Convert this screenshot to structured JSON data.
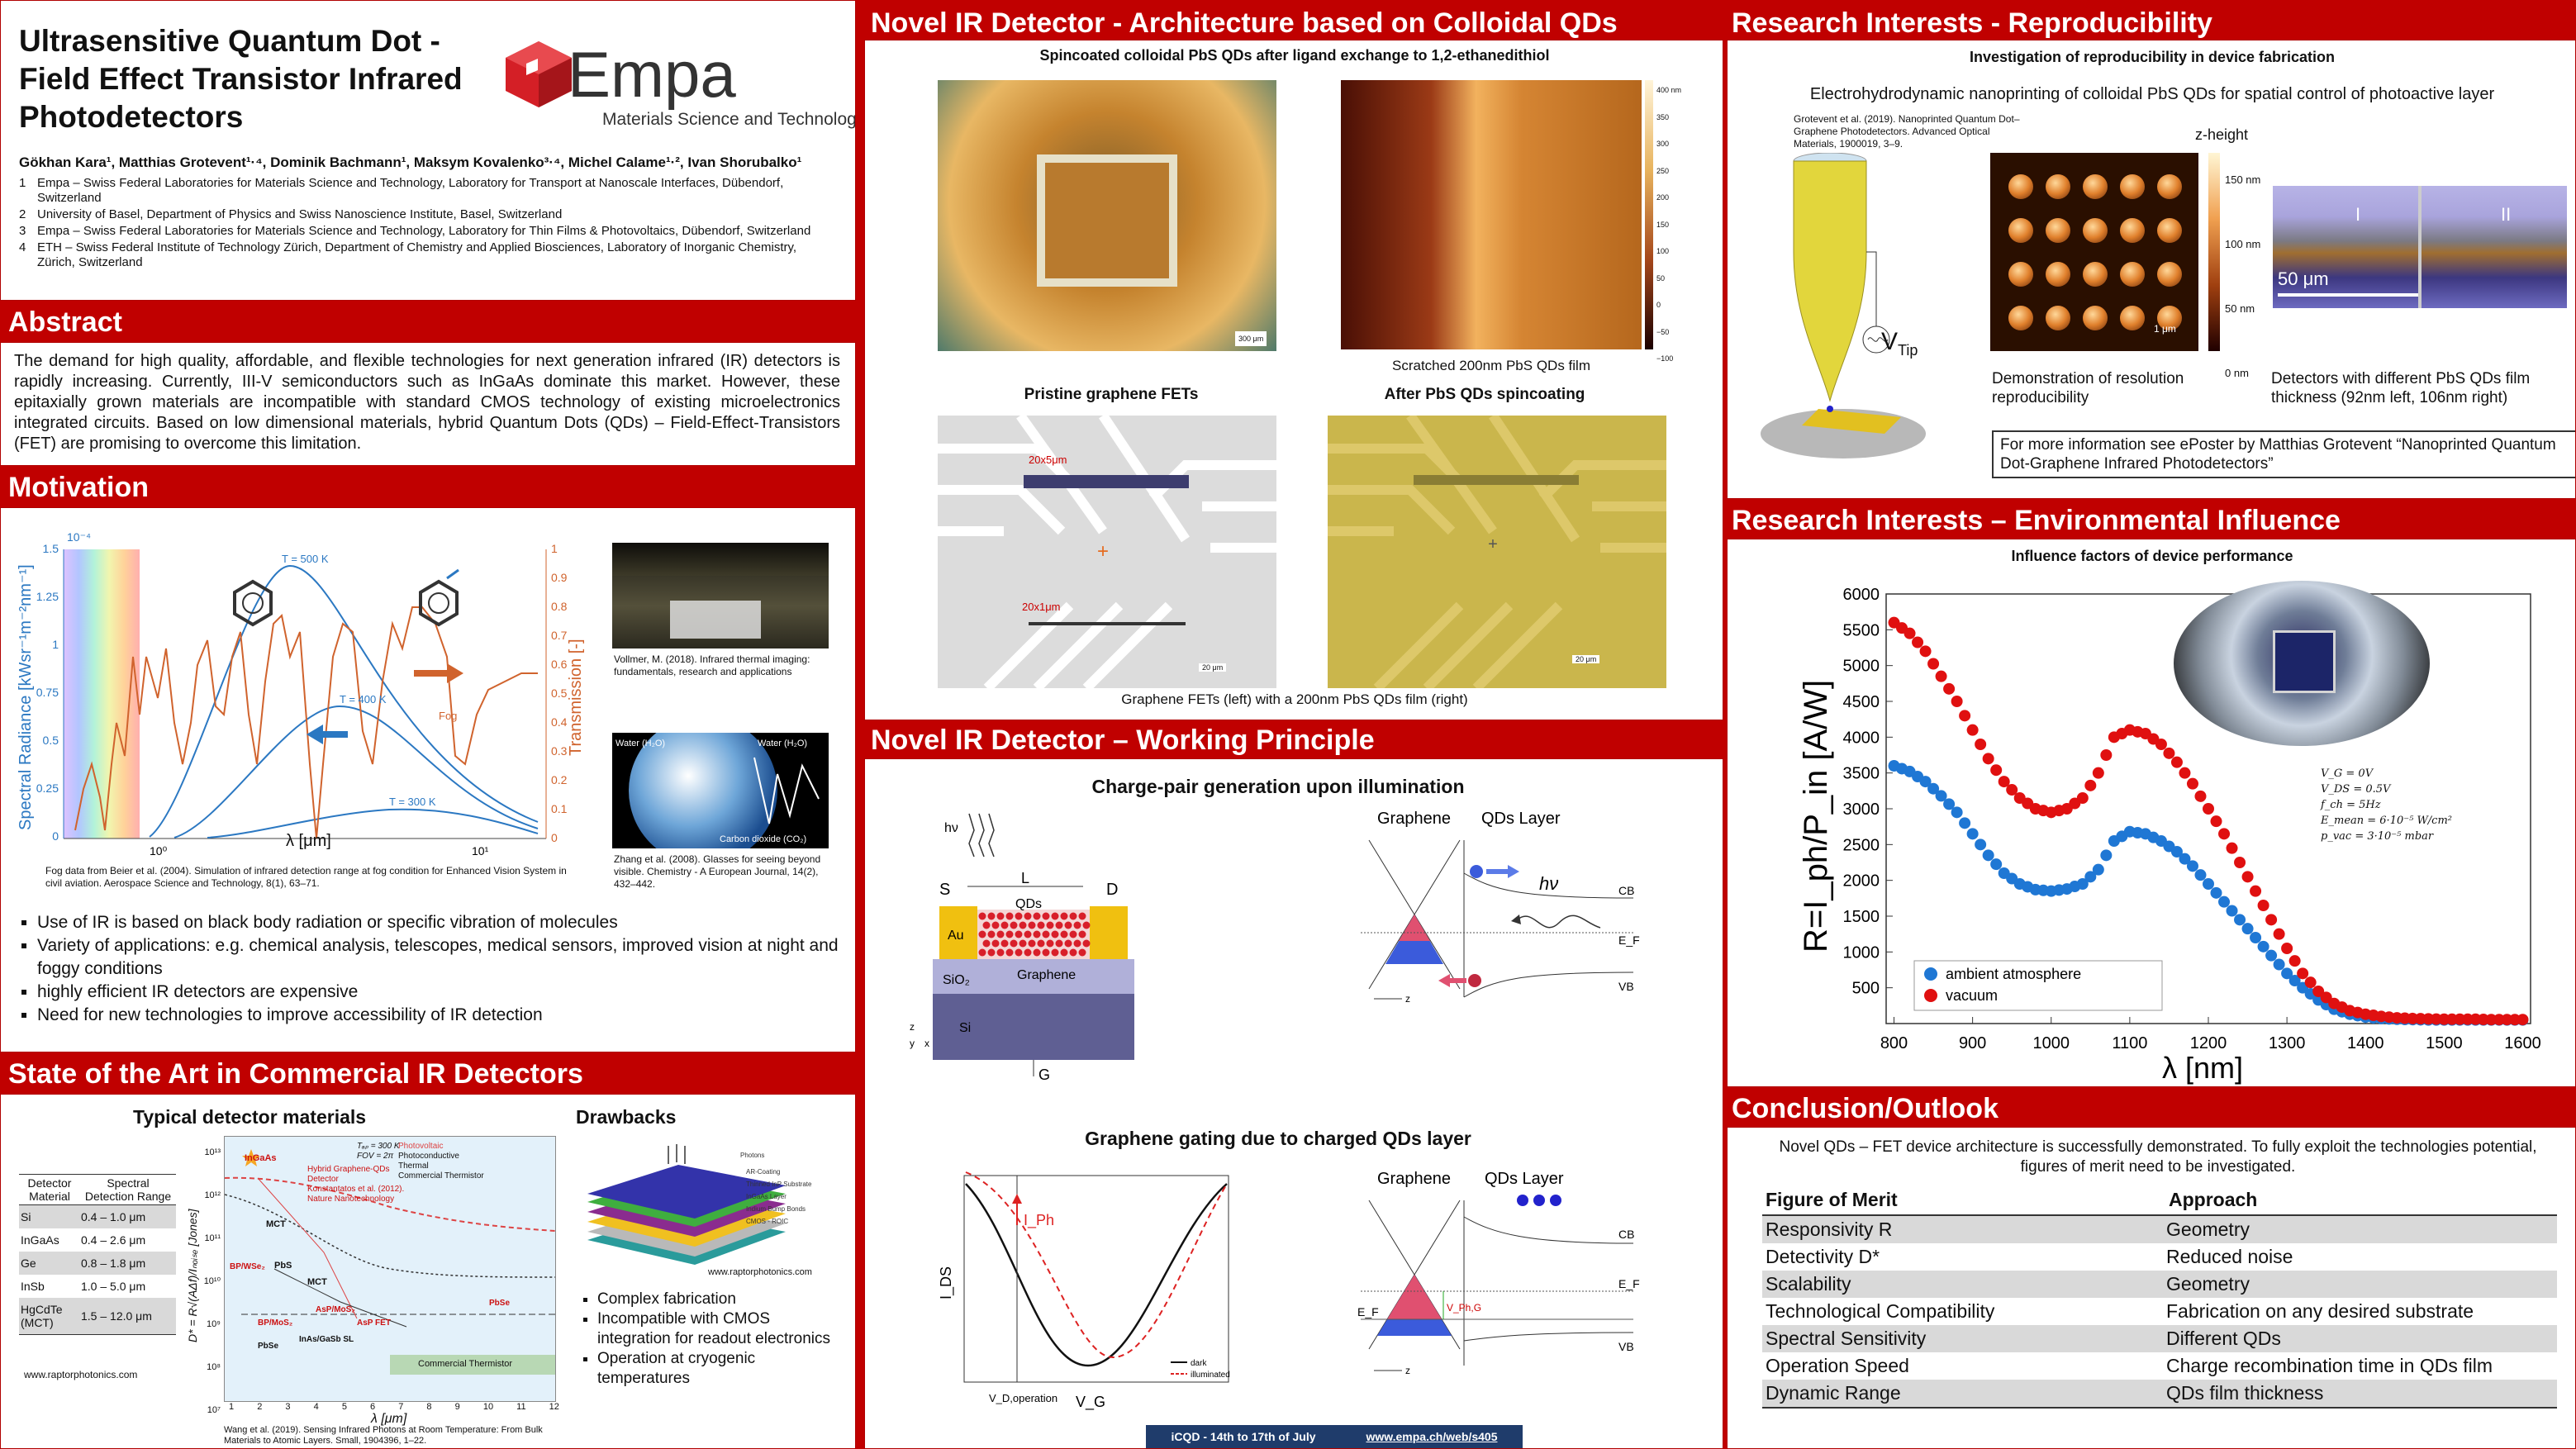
{
  "title": {
    "main": [
      "Ultrasensitive Quantum Dot -",
      "Field Effect Transistor Infrared",
      "Photodetectors"
    ],
    "logo_text": "Empa",
    "logo_sub": "Materials Science and Technology",
    "authors": "Gökhan Kara¹, Matthias Grotevent¹·⁴, Dominik Bachmann¹, Maksym Kovalenko³·⁴, Michel Calame¹·², Ivan Shorubalko¹",
    "affiliations": [
      {
        "n": "1",
        "text": "Empa – Swiss Federal Laboratories for Materials Science and Technology, Laboratory for Transport at Nanoscale Interfaces, Dübendorf, Switzerland"
      },
      {
        "n": "2",
        "text": "University of Basel, Department of Physics and Swiss Nanoscience Institute, Basel, Switzerland"
      },
      {
        "n": "3",
        "text": "Empa – Swiss Federal Laboratories for Materials Science and Technology, Laboratory for Thin Films & Photovoltaics, Dübendorf, Switzerland"
      },
      {
        "n": "4",
        "text": "ETH – Swiss Federal Institute of Technology Zürich, Department of Chemistry and Applied Biosciences, Laboratory of Inorganic Chemistry, Zürich, Switzerland"
      }
    ]
  },
  "abstract": {
    "heading": "Abstract",
    "text": "The demand for high quality, affordable, and flexible technologies for next generation infrared (IR) detectors is rapidly increasing. Currently, III-V semiconductors such as InGaAs dominate this market. However, these epitaxially grown materials are incompatible with standard CMOS technology of existing microelectronics integrated circuits. Based on low dimensional materials, hybrid Quantum Dots (QDs) – Field-Effect-Transistors (FET) are promising to overcome this limitation."
  },
  "motivation": {
    "heading": "Motivation",
    "ylabel_left": "Spectral Radiance [kWsr⁻¹m⁻²nm⁻¹]",
    "ylabel_right": "Transmission [-]",
    "xlabel": "λ [μm]",
    "exp_label": "10⁻⁴",
    "y_ticks": [
      "1.5",
      "1.25",
      "1",
      "0.75",
      "0.5",
      "0.25",
      "0"
    ],
    "y2_ticks": [
      "1",
      "0.9",
      "0.8",
      "0.7",
      "0.6",
      "0.5",
      "0.4",
      "0.3",
      "0.2",
      "0.1",
      "0"
    ],
    "x_ticks": [
      "10⁰",
      "10¹"
    ],
    "curve_labels": [
      "T = 500 K",
      "T = 400 K",
      "T = 300 K",
      "Fog"
    ],
    "fog_caption": "Fog data from Beier et al. (2004). Simulation of infrared detection range at fog condition for Enhanced Vision System in civil aviation. Aerospace Science and Technology, 8(1), 63–71.",
    "vollmer_caption": "Vollmer, M. (2018). Infrared thermal imaging: fundamentals, research and applications",
    "zhang_caption": "Zhang et al. (2008). Glasses for seeing beyond visible. Chemistry - A European Journal, 14(2), 432–442.",
    "earth_labels": [
      "Water (H₂O)",
      "Water (H₂O)",
      "Carbon dioxide (CO₂)"
    ],
    "bullets": [
      "Use of IR is based on black body radiation or specific vibration of molecules",
      "Variety of applications: e.g. chemical analysis, telescopes, medical sensors, improved vision at night and foggy conditions",
      "highly efficient IR detectors are expensive",
      "Need for new technologies to improve accessibility of IR detection"
    ]
  },
  "state_of_art": {
    "heading": "State of the Art in Commercial IR Detectors",
    "typical_title": "Typical detector materials",
    "table_headers": [
      "Detector Material",
      "Spectral Detection Range"
    ],
    "table_rows": [
      [
        "Si",
        "0.4 – 1.0 μm"
      ],
      [
        "InGaAs",
        "0.4 – 2.6 μm"
      ],
      [
        "Ge",
        "0.8 – 1.8 μm"
      ],
      [
        "InSb",
        "1.0 – 5.0 μm"
      ],
      [
        "HgCdTe (MCT)",
        "1.5 – 12.0 μm"
      ]
    ],
    "table_source": "www.raptorphotonics.com",
    "chart_legend": [
      "Photovoltaic",
      "Photoconductive",
      "Thermal",
      "Commercial Thermistor"
    ],
    "chart_conditions": [
      "Tₐₚ = 300 K",
      "FOV = 2π"
    ],
    "chart_labels": [
      "InGaAs",
      "MCT",
      "PbS",
      "MCT",
      "BP/WSe₂",
      "BP/MoS₂",
      "AsP/MoS₂",
      "AsP FET",
      "PbSe",
      "InAs/GaSb SL",
      "PbSe",
      "Commercial Thermistor",
      "Hybrid Graphene-QDs Detector",
      "Konstantatos et al. (2012). Nature Nanotechnology"
    ],
    "chart_ylabel": "D* = R√(AΔf)/Iₙₒᵢₛₑ [Jones]",
    "chart_xlabel": "λ [μm]",
    "chart_yticks": [
      "10¹³",
      "10¹²",
      "10¹¹",
      "10¹⁰",
      "10⁹",
      "10⁸",
      "10⁷"
    ],
    "chart_xticks": [
      "1",
      "2",
      "3",
      "4",
      "5",
      "6",
      "7",
      "8",
      "9",
      "10",
      "11",
      "12"
    ],
    "chart_source": "Wang et al. (2019). Sensing Infrared Photons at Room Temperature: From Bulk Materials to Atomic Layers. Small, 1904396, 1–22.",
    "drawbacks_title": "Drawbacks",
    "stack_labels": [
      "Photons",
      "AR-Coating",
      "Thinned InP Substrate",
      "InGaAs Layer",
      "Indium Bump Bonds",
      "CMOS - ROIC"
    ],
    "stack_source": "www.raptorphotonics.com",
    "drawbacks": [
      "Complex fabrication",
      "Incompatible with CMOS integration for readout electronics",
      "Operation at cryogenic temperatures"
    ]
  },
  "architecture": {
    "heading": "Novel IR Detector - Architecture based on Colloidal QDs",
    "subtitle": "Spincoated colloidal PbS QDs after ligand exchange to 1,2-ethanedithiol",
    "scale1": "300 μm",
    "colorbar_ticks": [
      "400 nm",
      "350",
      "300",
      "250",
      "200",
      "150",
      "100",
      "50",
      "0",
      "−50",
      "−100"
    ],
    "afm_caption": "Scratched 200nm PbS QDs film",
    "pristine_title": "Pristine graphene FETs",
    "after_title": "After PbS QDs spincoating",
    "fet_labels": [
      "20x5μm",
      "20x1μm"
    ],
    "scale2": "20 μm",
    "scale3": "20 μm",
    "bottom_caption": "Graphene FETs (left) with a 200nm PbS QDs film (right)"
  },
  "working": {
    "heading": "Novel IR Detector – Working Principle",
    "charge_title": "Charge-pair generation upon illumination",
    "device_labels": {
      "hv": "hν",
      "L": "L",
      "S": "S",
      "D": "D",
      "QDs": "QDs",
      "Au": "Au",
      "SiO2": "SiO₂",
      "Graphene": "Graphene",
      "Si": "Si",
      "G": "G",
      "z": "z",
      "x": "x",
      "y": "y"
    },
    "band1": {
      "graphene": "Graphene",
      "qds": "QDs Layer",
      "cb": "CB",
      "vb": "VB",
      "ef": "E_F",
      "hv": "hν",
      "z": "z"
    },
    "gating_title": "Graphene gating due to charged QDs layer",
    "gating": {
      "ylabel": "I_DS",
      "xlabel": "V_G",
      "vd": "V_D,operation",
      "iph": "I_Ph",
      "legend": [
        "dark",
        "illuminated"
      ]
    },
    "band2": {
      "graphene": "Graphene",
      "qds": "QDs Layer",
      "cb": "CB",
      "vb": "VB",
      "ef": "E_F",
      "vph": "V_Ph,G",
      "z": "z"
    },
    "footer": [
      "iCQD - 14th to 17th of July",
      "www.empa.ch/web/s405"
    ]
  },
  "reproducibility": {
    "heading": "Research Interests - Reproducibility",
    "subtitle": "Investigation of reproducibility in device fabrication",
    "line": "Electrohydrodynamic nanoprinting of colloidal PbS QDs for spatial control of photoactive layer",
    "reference": "Grotevent et al. (2019). Nanoprinted Quantum Dot–Graphene Photodetectors. Advanced Optical Materials, 1900019, 3–9.",
    "vtip": "V",
    "vtip_sub": "Tip",
    "zheight": "z-height",
    "z_ticks": [
      "150 nm",
      "100 nm",
      "50 nm",
      "0 nm"
    ],
    "scale_um": "1 μm",
    "scale_50": "50 μm",
    "labels_I_II": [
      "I",
      "II"
    ],
    "cap_left": "Demonstration of resolution reproducibility",
    "cap_right": "Detectors with different PbS QDs film thickness (92nm left, 106nm right)",
    "more_info": "For more information see ePoster by Matthias Grotevent “Nanoprinted Quantum Dot-Graphene Infrared Photodetectors”",
    "more_info_plain": "For more information see ePoster by Matthias Grotevent "
  },
  "environment": {
    "heading": "Research Interests – Environmental Influence",
    "subtitle": "Influence factors of device performance",
    "params": [
      "V_G = 0V",
      "V_DS = 0.5V",
      "f_ch = 5Hz",
      "E_mean = 6·10⁻⁵ W/cm²",
      "p_vac = 3·10⁻⁵ mbar"
    ],
    "chart_data": {
      "type": "scatter",
      "xlabel": "λ [nm]",
      "ylabel": "R=I_ph/P_in [A/W]",
      "xlim": [
        790,
        1610
      ],
      "ylim": [
        0,
        6000
      ],
      "x_ticks": [
        800,
        900,
        1000,
        1100,
        1200,
        1300,
        1400,
        1500,
        1600
      ],
      "y_ticks": [
        500,
        1000,
        1500,
        2000,
        2500,
        3000,
        3500,
        4000,
        4500,
        5000,
        5500,
        6000
      ],
      "legend_position": "bottom-left",
      "series": [
        {
          "name": "ambient atmosphere",
          "color": "#1f77d4",
          "x": [
            800,
            820,
            840,
            860,
            880,
            900,
            920,
            940,
            960,
            980,
            1000,
            1020,
            1040,
            1060,
            1080,
            1100,
            1120,
            1140,
            1160,
            1180,
            1200,
            1220,
            1240,
            1260,
            1280,
            1300,
            1320,
            1340,
            1360,
            1380,
            1400,
            1420,
            1440,
            1460,
            1480,
            1500,
            1520,
            1540,
            1560,
            1580,
            1600
          ],
          "y": [
            3600,
            3520,
            3380,
            3180,
            2950,
            2650,
            2350,
            2100,
            1950,
            1870,
            1850,
            1880,
            1950,
            2150,
            2550,
            2680,
            2650,
            2550,
            2400,
            2200,
            1950,
            1700,
            1450,
            1200,
            950,
            700,
            500,
            330,
            200,
            130,
            90,
            70,
            60,
            55,
            50,
            50,
            50,
            50,
            50,
            50,
            50
          ]
        },
        {
          "name": "vacuum",
          "color": "#e01010",
          "x": [
            800,
            820,
            840,
            860,
            880,
            900,
            920,
            940,
            960,
            980,
            1000,
            1020,
            1040,
            1060,
            1080,
            1100,
            1120,
            1140,
            1160,
            1180,
            1200,
            1220,
            1240,
            1260,
            1280,
            1300,
            1320,
            1340,
            1360,
            1380,
            1400,
            1420,
            1440,
            1460,
            1480,
            1500,
            1520,
            1540,
            1560,
            1580,
            1600
          ],
          "y": [
            5600,
            5450,
            5200,
            4850,
            4500,
            4100,
            3700,
            3380,
            3150,
            3000,
            2950,
            3000,
            3150,
            3500,
            4000,
            4100,
            4050,
            3900,
            3650,
            3350,
            3000,
            2650,
            2250,
            1850,
            1450,
            1050,
            700,
            450,
            280,
            180,
            130,
            100,
            80,
            70,
            65,
            60,
            60,
            60,
            55,
            55,
            55
          ]
        }
      ]
    }
  },
  "conclusion": {
    "heading": "Conclusion/Outlook",
    "text": "Novel QDs – FET device architecture is successfully demonstrated. To fully exploit the technologies potential, figures of merit need to be investigated.",
    "table_headers": [
      "Figure of Merit",
      "Approach"
    ],
    "rows": [
      [
        "Responsivity R",
        "Geometry"
      ],
      [
        "Detectivity D*",
        "Reduced noise"
      ],
      [
        "Scalability",
        "Geometry"
      ],
      [
        "Technological Compatibility",
        "Fabrication on any desired substrate"
      ],
      [
        "Spectral Sensitivity",
        "Different QDs"
      ],
      [
        "Operation Speed",
        "Charge recombination time in QDs film"
      ],
      [
        "Dynamic Range",
        "QDs film thickness"
      ]
    ]
  }
}
